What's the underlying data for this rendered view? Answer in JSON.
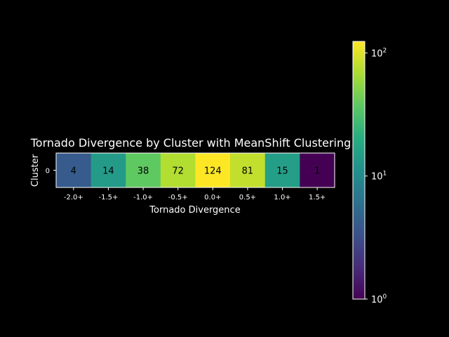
{
  "chart_data": {
    "type": "heatmap",
    "title": "Tornado Divergence by Cluster with MeanShift Clustering",
    "xlabel": "Tornado Divergence",
    "ylabel": "Cluster",
    "x_categories": [
      "-2.0+",
      "-1.5+",
      "-1.0+",
      "-0.5+",
      "0.0+",
      "0.5+",
      "1.0+",
      "1.5+"
    ],
    "y_categories": [
      "0"
    ],
    "values": [
      [
        4,
        14,
        38,
        72,
        124,
        81,
        15,
        1
      ]
    ],
    "colorbar": {
      "scale": "log",
      "range": [
        1,
        124
      ],
      "ticks": [
        {
          "value": 1,
          "base": "10",
          "exp": "0"
        },
        {
          "value": 10,
          "base": "10",
          "exp": "1"
        },
        {
          "value": 100,
          "base": "10",
          "exp": "2"
        }
      ],
      "colormap": "viridis"
    },
    "colors": {
      "background": "#000000",
      "foreground": "#ffffff",
      "annotation_text": "#000000"
    }
  }
}
